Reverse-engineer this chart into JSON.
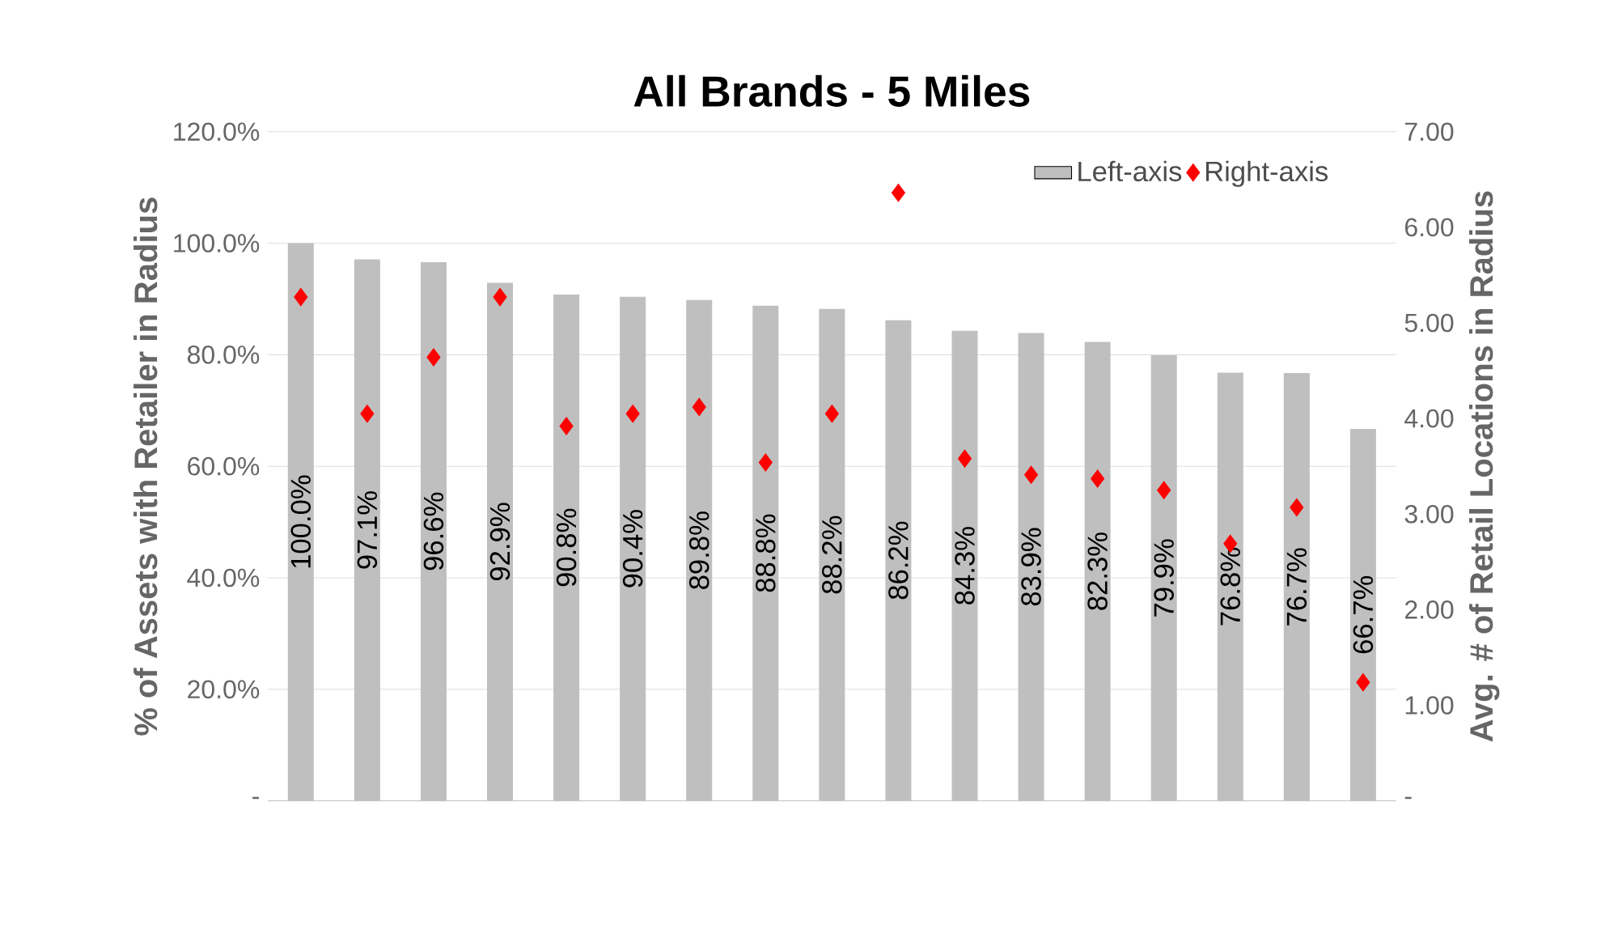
{
  "chart_data": {
    "type": "bar",
    "title": "All Brands - 5 Miles",
    "ylabel": "% of Assets with Retailer in Radius",
    "y2label": "Avg. # of Retail Locations in Radius",
    "categories": [
      null,
      null,
      null,
      null,
      null,
      null,
      null,
      null,
      null,
      null,
      null,
      null,
      null,
      null,
      null,
      null,
      null
    ],
    "series": [
      {
        "name": "Left-axis",
        "color": "#bfbfbf",
        "values": [
          100.0,
          97.1,
          96.6,
          92.9,
          90.8,
          90.4,
          89.8,
          88.8,
          88.2,
          86.2,
          84.3,
          83.9,
          82.3,
          79.9,
          76.8,
          76.7,
          66.7
        ],
        "value_labels": [
          "100.0%",
          "97.1%",
          "96.6%",
          "92.9%",
          "90.8%",
          "90.4%",
          "89.8%",
          "88.8%",
          "88.2%",
          "86.2%",
          "84.3%",
          "83.9%",
          "82.3%",
          "79.9%",
          "76.8%",
          "76.7%",
          "66.7%"
        ]
      },
      {
        "name": "Right-axis",
        "type": "scatter",
        "axis": "y2",
        "color": "#ff0000",
        "marker": "diamond",
        "values": [
          5.27,
          4.05,
          4.64,
          5.27,
          3.92,
          4.05,
          4.12,
          3.54,
          4.05,
          6.36,
          3.58,
          3.41,
          3.37,
          3.25,
          2.69,
          3.07,
          1.24
        ]
      }
    ],
    "ylim": [
      0,
      120
    ],
    "yticks": [
      {
        "value": 0,
        "label": "-"
      },
      {
        "value": 20,
        "label": "20.0%"
      },
      {
        "value": 40,
        "label": "40.0%"
      },
      {
        "value": 60,
        "label": "60.0%"
      },
      {
        "value": 80,
        "label": "80.0%"
      },
      {
        "value": 100,
        "label": "100.0%"
      },
      {
        "value": 120,
        "label": "120.0%"
      }
    ],
    "y2lim": [
      0,
      7
    ],
    "y2ticks": [
      {
        "value": 0,
        "label": "-"
      },
      {
        "value": 1,
        "label": "1.00"
      },
      {
        "value": 2,
        "label": "2.00"
      },
      {
        "value": 3,
        "label": "3.00"
      },
      {
        "value": 4,
        "label": "4.00"
      },
      {
        "value": 5,
        "label": "5.00"
      },
      {
        "value": 6,
        "label": "6.00"
      },
      {
        "value": 7,
        "label": "7.00"
      }
    ],
    "grid": "y",
    "legend": "top right"
  }
}
